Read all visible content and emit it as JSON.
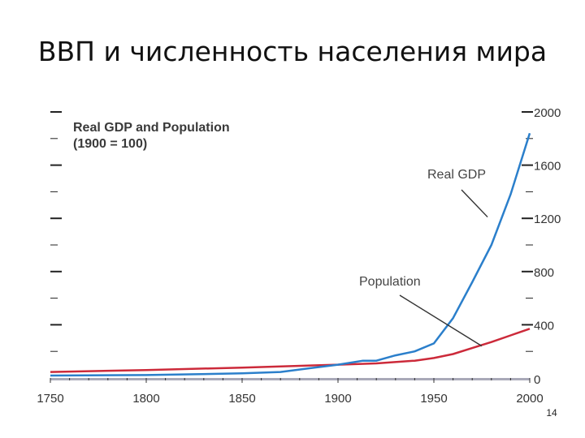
{
  "slide": {
    "title": "ВВП и численность населения мира",
    "page_number": "14"
  },
  "chart_data": {
    "type": "line",
    "title": "Real GDP and Population",
    "subtitle": "(1900 = 100)",
    "xlabel": "",
    "ylabel": "",
    "xlim": [
      1750,
      2000
    ],
    "ylim": [
      0,
      2000
    ],
    "x_ticks": [
      1750,
      1800,
      1850,
      1900,
      1950,
      2000
    ],
    "y_ticks": [
      0,
      400,
      800,
      1200,
      1600,
      2000
    ],
    "grid": false,
    "series": [
      {
        "name": "Real GDP",
        "color": "#2b7fcb",
        "x": [
          1750,
          1800,
          1850,
          1870,
          1900,
          1913,
          1920,
          1930,
          1940,
          1950,
          1960,
          1970,
          1980,
          1990,
          2000
        ],
        "y": [
          18,
          22,
          35,
          45,
          100,
          130,
          130,
          170,
          200,
          260,
          450,
          720,
          1000,
          1380,
          1840
        ]
      },
      {
        "name": "Population",
        "color": "#cc2a3a",
        "x": [
          1750,
          1800,
          1850,
          1900,
          1920,
          1940,
          1950,
          1960,
          1970,
          1980,
          1990,
          2000
        ],
        "y": [
          45,
          60,
          78,
          100,
          110,
          130,
          150,
          180,
          225,
          270,
          320,
          370
        ]
      }
    ],
    "annotations": [
      {
        "text": "Real GDP",
        "points_to_series": "Real GDP"
      },
      {
        "text": "Population",
        "points_to_series": "Population"
      }
    ]
  }
}
